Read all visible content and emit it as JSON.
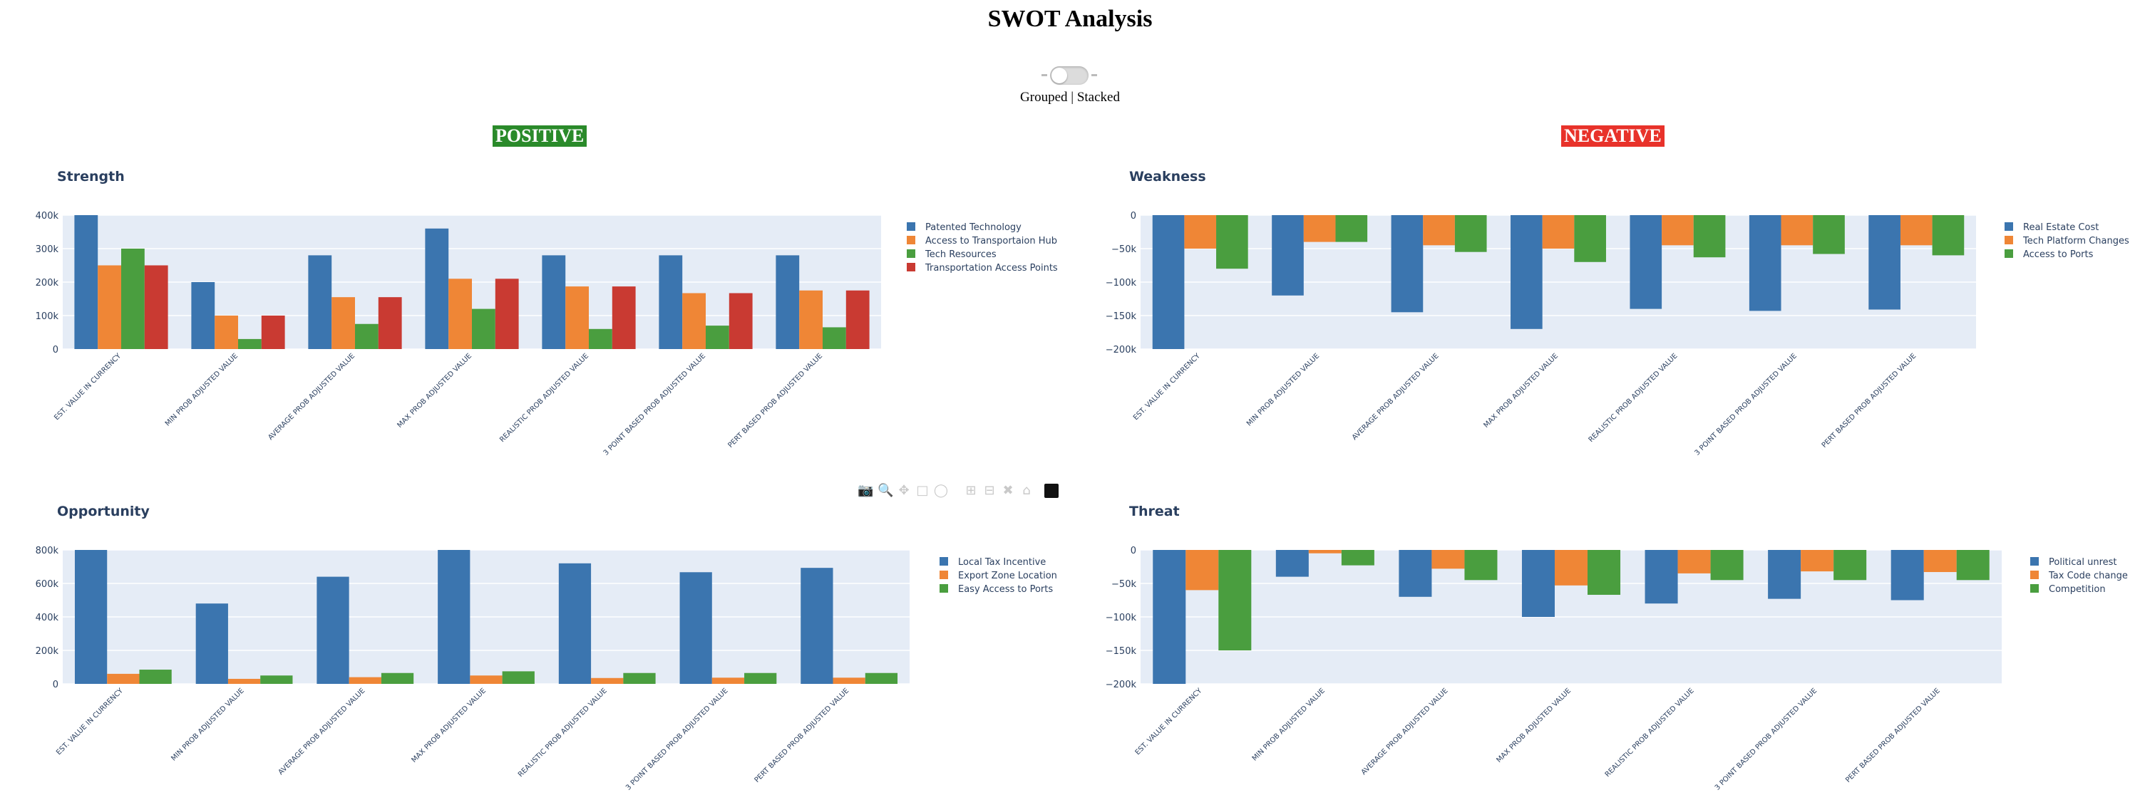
{
  "header": {
    "title": "SWOT Analysis",
    "toggle_label": "Grouped | Stacked"
  },
  "quadrant_labels": {
    "positive": "POSITIVE",
    "negative": "NEGATIVE"
  },
  "colors": {
    "blue": "#3b75af",
    "orange": "#ef8636",
    "green": "#4a9e3f",
    "red": "#c93a32",
    "plot_bg": "#e5ecf6",
    "title_color": "#2a3f5f"
  },
  "modebar": [
    "camera-icon",
    "zoom-icon",
    "pan-icon",
    "box-select-icon",
    "lasso-icon",
    "zoom-in-icon",
    "zoom-out-icon",
    "autoscale-icon",
    "home-icon",
    "plotly-logo-icon"
  ],
  "chart_data": [
    {
      "id": "strength",
      "type": "bar",
      "title": "Strength",
      "categories": [
        "EST. VALUE IN CURRENCY",
        "MIN PROB ADJUSTED VALUE",
        "AVERAGE PROB ADJUSTED VALUE",
        "MAX PROB ADJUSTED VALUE",
        "REALISTIC PROB ADJUSTED VALUE",
        "3 POINT BASED PROB ADJUSTED VALUE",
        "PERT BASED PROB ADJUSTED VALUE"
      ],
      "series": [
        {
          "name": "Patented Technology",
          "color": "#3b75af",
          "values": [
            400000,
            200000,
            280000,
            360000,
            280000,
            280000,
            280000
          ]
        },
        {
          "name": "Access to Transportaion Hub",
          "color": "#ef8636",
          "values": [
            250000,
            100000,
            155000,
            210000,
            187000,
            167000,
            175000
          ]
        },
        {
          "name": "Tech Resources",
          "color": "#4a9e3f",
          "values": [
            300000,
            30000,
            75000,
            120000,
            60000,
            70000,
            65000
          ]
        },
        {
          "name": "Transportation Access Points",
          "color": "#c93a32",
          "values": [
            250000,
            100000,
            155000,
            210000,
            187000,
            167000,
            175000
          ]
        }
      ],
      "ylim": [
        0,
        400000
      ],
      "yticks": [
        0,
        100000,
        200000,
        300000,
        400000
      ],
      "ytick_labels": [
        "0",
        "100k",
        "200k",
        "300k",
        "400k"
      ],
      "legend": "top-right"
    },
    {
      "id": "weakness",
      "type": "bar",
      "title": "Weakness",
      "categories": [
        "EST. VALUE IN CURRENCY",
        "MIN PROB ADJUSTED VALUE",
        "AVERAGE PROB ADJUSTED VALUE",
        "MAX PROB ADJUSTED VALUE",
        "REALISTIC PROB ADJUSTED VALUE",
        "3 POINT BASED PROB ADJUSTED VALUE",
        "PERT BASED PROB ADJUSTED VALUE"
      ],
      "series": [
        {
          "name": "Real Estate Cost",
          "color": "#3b75af",
          "values": [
            -200000,
            -120000,
            -145000,
            -170000,
            -140000,
            -143000,
            -141000
          ]
        },
        {
          "name": "Tech Platform Changes",
          "color": "#ef8636",
          "values": [
            -50000,
            -40000,
            -45000,
            -50000,
            -45000,
            -45000,
            -45000
          ]
        },
        {
          "name": "Access to Ports",
          "color": "#4a9e3f",
          "values": [
            -80000,
            -40000,
            -55000,
            -70000,
            -63000,
            -58000,
            -60000
          ]
        }
      ],
      "ylim": [
        -200000,
        0
      ],
      "yticks": [
        0,
        -50000,
        -100000,
        -150000,
        -200000
      ],
      "ytick_labels": [
        "0",
        "−50k",
        "−100k",
        "−150k",
        "−200k"
      ],
      "legend": "top-right"
    },
    {
      "id": "opportunity",
      "type": "bar",
      "title": "Opportunity",
      "categories": [
        "EST. VALUE IN CURRENCY",
        "MIN PROB ADJUSTED VALUE",
        "AVERAGE PROB ADJUSTED VALUE",
        "MAX PROB ADJUSTED VALUE",
        "REALISTIC PROB ADJUSTED VALUE",
        "3 POINT BASED PROB ADJUSTED VALUE",
        "PERT BASED PROB ADJUSTED VALUE"
      ],
      "series": [
        {
          "name": "Local Tax Incentive",
          "color": "#3b75af",
          "values": [
            800000,
            480000,
            640000,
            800000,
            720000,
            667000,
            693000
          ]
        },
        {
          "name": "Export Zone Location",
          "color": "#ef8636",
          "values": [
            60000,
            30000,
            40000,
            50000,
            35000,
            37000,
            37000
          ]
        },
        {
          "name": "Easy Access to Ports",
          "color": "#4a9e3f",
          "values": [
            85000,
            50000,
            65000,
            75000,
            65000,
            65000,
            65000
          ]
        }
      ],
      "ylim": [
        0,
        800000
      ],
      "yticks": [
        0,
        200000,
        400000,
        600000,
        800000
      ],
      "ytick_labels": [
        "0",
        "200k",
        "400k",
        "600k",
        "800k"
      ],
      "legend": "top-right"
    },
    {
      "id": "threat",
      "type": "bar",
      "title": "Threat",
      "categories": [
        "EST. VALUE IN CURRENCY",
        "MIN PROB ADJUSTED VALUE",
        "AVERAGE PROB ADJUSTED VALUE",
        "MAX PROB ADJUSTED VALUE",
        "REALISTIC PROB ADJUSTED VALUE",
        "3 POINT BASED PROB ADJUSTED VALUE",
        "PERT BASED PROB ADJUSTED VALUE"
      ],
      "series": [
        {
          "name": "Political unrest",
          "color": "#3b75af",
          "values": [
            -200000,
            -40000,
            -70000,
            -100000,
            -80000,
            -73000,
            -75000
          ]
        },
        {
          "name": "Tax Code change",
          "color": "#ef8636",
          "values": [
            -60000,
            -5000,
            -28000,
            -53000,
            -35000,
            -32000,
            -33000
          ]
        },
        {
          "name": "Competition",
          "color": "#4a9e3f",
          "values": [
            -150000,
            -23000,
            -45000,
            -67000,
            -45000,
            -45000,
            -45000
          ]
        }
      ],
      "ylim": [
        -200000,
        0
      ],
      "yticks": [
        0,
        -50000,
        -100000,
        -150000,
        -200000
      ],
      "ytick_labels": [
        "0",
        "−50k",
        "−100k",
        "−150k",
        "−200k"
      ],
      "legend": "top-right"
    }
  ]
}
